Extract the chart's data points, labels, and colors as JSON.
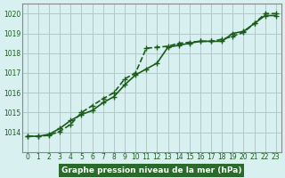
{
  "line1_x": [
    0,
    1,
    2,
    3,
    4,
    5,
    6,
    7,
    8,
    9,
    10,
    11,
    12,
    13,
    14,
    15,
    16,
    17,
    18,
    19,
    20,
    21,
    22,
    23
  ],
  "line1_y": [
    1013.8,
    1013.8,
    1013.9,
    1014.2,
    1014.6,
    1014.9,
    1015.1,
    1015.5,
    1015.8,
    1016.4,
    1016.9,
    1017.2,
    1017.5,
    1018.3,
    1018.4,
    1018.5,
    1018.6,
    1018.6,
    1018.6,
    1019.0,
    1019.1,
    1019.5,
    1019.9,
    1019.9
  ],
  "line2_x": [
    0,
    1,
    2,
    3,
    4,
    5,
    6,
    7,
    8,
    9,
    10,
    11,
    12,
    13,
    14,
    15,
    16,
    17,
    18,
    19,
    20,
    21,
    22,
    23
  ],
  "line2_y": [
    1013.8,
    1013.8,
    1013.85,
    1014.05,
    1014.4,
    1015.0,
    1015.35,
    1015.7,
    1016.0,
    1016.7,
    1017.0,
    1018.25,
    1018.3,
    1018.35,
    1018.5,
    1018.55,
    1018.6,
    1018.6,
    1018.7,
    1018.85,
    1019.05,
    1019.5,
    1020.0,
    1020.0
  ],
  "ylim": [
    1013.0,
    1020.5
  ],
  "xlim": [
    -0.5,
    23.5
  ],
  "yticks": [
    1014,
    1015,
    1016,
    1017,
    1018,
    1019,
    1020
  ],
  "xticks": [
    0,
    1,
    2,
    3,
    4,
    5,
    6,
    7,
    8,
    9,
    10,
    11,
    12,
    13,
    14,
    15,
    16,
    17,
    18,
    19,
    20,
    21,
    22,
    23
  ],
  "xlabel": "Graphe pression niveau de la mer (hPa)",
  "bg_color": "#d8f0f0",
  "line_color": "#1a5c1a",
  "grid_color": "#b0c8c8",
  "border_color": "#888888",
  "xlabel_bg": "#2a6a2a",
  "xlabel_fg": "#ffffff",
  "marker": "+",
  "marker_size": 5,
  "line_width": 1.2
}
